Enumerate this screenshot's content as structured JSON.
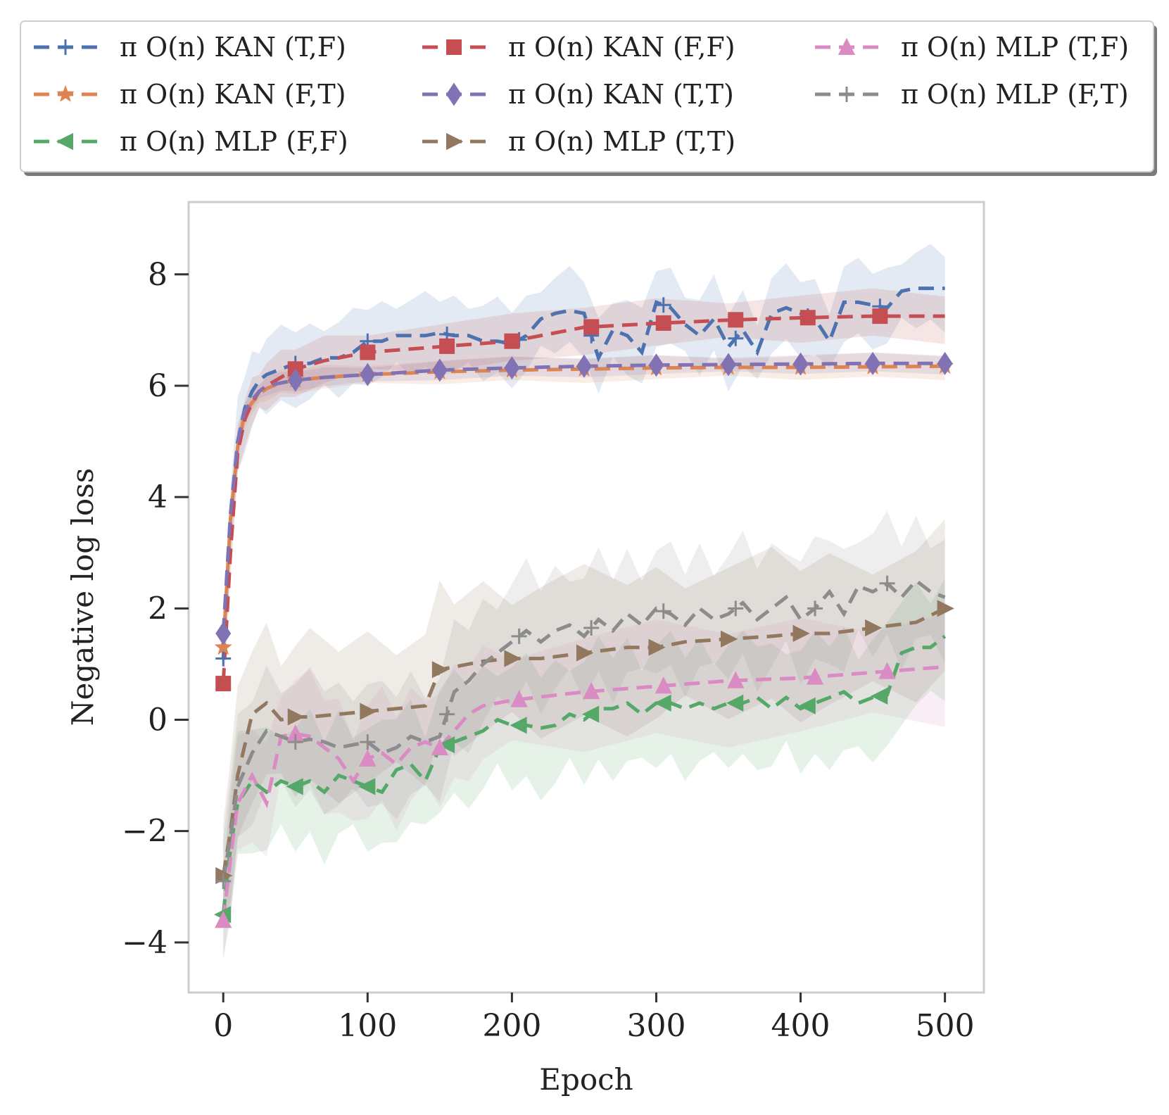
{
  "chart_data": {
    "type": "line",
    "title": "",
    "xlabel": "Epoch",
    "ylabel": "Negative log loss",
    "xlim": [
      -24,
      527
    ],
    "ylim": [
      -4.9,
      9.3
    ],
    "xticks": [
      0,
      100,
      200,
      300,
      400,
      500
    ],
    "yticks": [
      -4,
      -2,
      0,
      2,
      4,
      6,
      8
    ],
    "xtick_labels": [
      "0",
      "100",
      "200",
      "300",
      "400",
      "500"
    ],
    "ytick_labels": [
      "−4",
      "−2",
      "0",
      "2",
      "4",
      "6",
      "8"
    ],
    "grid": false,
    "legend_position": "top",
    "series": [
      {
        "name": "π O(n) KAN (T,F)",
        "color": "#4c72b0",
        "marker": "plus",
        "x": [
          0,
          5,
          10,
          15,
          20,
          25,
          30,
          40,
          50,
          60,
          70,
          80,
          90,
          100,
          110,
          120,
          130,
          140,
          150,
          160,
          170,
          180,
          190,
          200,
          210,
          220,
          230,
          240,
          250,
          260,
          270,
          280,
          290,
          300,
          310,
          320,
          330,
          340,
          350,
          360,
          370,
          380,
          390,
          400,
          410,
          420,
          430,
          440,
          450,
          460,
          470,
          480,
          490,
          500
        ],
        "y": [
          1.1,
          3.5,
          5.0,
          5.6,
          5.9,
          6.1,
          6.2,
          6.3,
          6.4,
          6.4,
          6.5,
          6.5,
          6.6,
          6.8,
          6.8,
          6.9,
          6.9,
          6.9,
          6.95,
          6.9,
          6.9,
          6.8,
          6.8,
          6.75,
          6.9,
          7.2,
          7.3,
          7.35,
          7.3,
          6.5,
          7.0,
          6.9,
          6.6,
          7.5,
          7.4,
          7.1,
          6.9,
          7.2,
          6.7,
          7.0,
          6.6,
          7.3,
          7.4,
          7.3,
          7.2,
          6.8,
          7.5,
          7.5,
          7.45,
          7.4,
          7.7,
          7.75,
          7.75,
          7.75
        ],
        "band": 0.8,
        "marker_x": [
          0,
          50,
          100,
          155,
          205,
          255,
          305,
          355,
          405,
          455
        ]
      },
      {
        "name": "π O(n) KAN (F,T)",
        "color": "#dd8452",
        "marker": "star",
        "x": [
          0,
          5,
          10,
          15,
          20,
          25,
          30,
          40,
          50,
          70,
          100,
          150,
          200,
          250,
          300,
          350,
          400,
          450,
          500
        ],
        "y": [
          1.3,
          3.6,
          4.9,
          5.5,
          5.7,
          5.85,
          5.95,
          6.05,
          6.1,
          6.15,
          6.2,
          6.25,
          6.28,
          6.3,
          6.32,
          6.33,
          6.33,
          6.34,
          6.35
        ],
        "band": 0.25,
        "marker_x": [
          0,
          50,
          100,
          150,
          200,
          250,
          300,
          350,
          400,
          450,
          500
        ]
      },
      {
        "name": "π O(n) MLP (F,F)",
        "color": "#55a868",
        "marker": "triangle-left",
        "x": [
          0,
          5,
          10,
          20,
          30,
          40,
          50,
          60,
          70,
          80,
          90,
          100,
          110,
          120,
          130,
          140,
          150,
          160,
          170,
          180,
          190,
          200,
          210,
          220,
          230,
          240,
          250,
          260,
          270,
          280,
          290,
          300,
          310,
          320,
          330,
          340,
          350,
          360,
          370,
          380,
          390,
          400,
          410,
          420,
          430,
          440,
          450,
          460,
          470,
          480,
          490,
          500
        ],
        "y": [
          -3.5,
          -2.3,
          -1.5,
          -1.1,
          -1.3,
          -1.1,
          -1.2,
          -1.1,
          -1.3,
          -1.0,
          -1.1,
          -1.2,
          -1.3,
          -0.9,
          -0.8,
          -1.1,
          -0.5,
          -0.4,
          -0.3,
          -0.2,
          0.0,
          -0.1,
          -0.1,
          -0.15,
          -0.1,
          0.1,
          0.0,
          0.2,
          0.2,
          0.3,
          0.1,
          0.3,
          0.3,
          0.2,
          0.3,
          0.2,
          0.3,
          0.3,
          0.4,
          0.2,
          0.4,
          0.2,
          0.3,
          0.4,
          0.5,
          0.3,
          0.4,
          0.45,
          1.2,
          1.3,
          1.3,
          1.5
        ],
        "band": 1.3,
        "marker_x": [
          0,
          50,
          100,
          155,
          205,
          255,
          305,
          355,
          405,
          455
        ]
      },
      {
        "name": "π O(n) KAN (F,F)",
        "color": "#c44e52",
        "marker": "square",
        "x": [
          0,
          5,
          10,
          15,
          20,
          25,
          30,
          40,
          50,
          70,
          100,
          150,
          200,
          250,
          300,
          350,
          400,
          450,
          500
        ],
        "y": [
          0.65,
          3.0,
          4.8,
          5.4,
          5.7,
          5.9,
          6.0,
          6.15,
          6.3,
          6.45,
          6.6,
          6.7,
          6.8,
          7.05,
          7.12,
          7.18,
          7.22,
          7.25,
          7.25
        ],
        "band": 0.5,
        "marker_x": [
          0,
          50,
          100,
          155,
          200,
          255,
          305,
          355,
          405,
          455
        ]
      },
      {
        "name": "π O(n) KAN (T,T)",
        "color": "#8172b3",
        "marker": "diamond",
        "x": [
          0,
          5,
          10,
          15,
          20,
          25,
          30,
          40,
          50,
          70,
          100,
          150,
          200,
          250,
          300,
          350,
          400,
          450,
          500
        ],
        "y": [
          1.55,
          3.7,
          5.0,
          5.55,
          5.75,
          5.9,
          6.0,
          6.05,
          6.1,
          6.15,
          6.2,
          6.28,
          6.32,
          6.35,
          6.37,
          6.38,
          6.39,
          6.4,
          6.4
        ],
        "band": 0.2,
        "marker_x": [
          0,
          50,
          100,
          150,
          200,
          250,
          300,
          350,
          400,
          450,
          500
        ]
      },
      {
        "name": "π O(n) MLP (T,T)",
        "color": "#937860",
        "marker": "triangle-right",
        "x": [
          0,
          5,
          10,
          20,
          30,
          40,
          50,
          60,
          80,
          100,
          120,
          140,
          150,
          160,
          180,
          200,
          220,
          250,
          280,
          300,
          320,
          350,
          380,
          400,
          420,
          450,
          480,
          500
        ],
        "y": [
          -2.8,
          -2.0,
          -1.0,
          0.1,
          0.3,
          0.0,
          0.05,
          0.05,
          0.1,
          0.15,
          0.2,
          0.25,
          0.9,
          0.95,
          1.05,
          1.1,
          1.1,
          1.2,
          1.3,
          1.3,
          1.4,
          1.45,
          1.5,
          1.55,
          1.55,
          1.65,
          1.75,
          2.0
        ],
        "band": 1.6,
        "marker_x": [
          0,
          50,
          100,
          150,
          200,
          250,
          300,
          350,
          400,
          450,
          500
        ]
      },
      {
        "name": "π O(n) MLP (T,F)",
        "color": "#da8bc3",
        "marker": "triangle-up",
        "x": [
          0,
          5,
          10,
          20,
          30,
          40,
          50,
          60,
          70,
          80,
          90,
          100,
          110,
          120,
          130,
          140,
          150,
          160,
          170,
          180,
          200,
          250,
          300,
          350,
          400,
          450,
          500
        ],
        "y": [
          -3.6,
          -2.5,
          -1.5,
          -1.0,
          -1.5,
          -0.3,
          -0.25,
          -0.3,
          -0.5,
          -0.7,
          -1.1,
          -0.7,
          -0.6,
          -0.8,
          -0.5,
          -0.4,
          -0.5,
          -0.2,
          0.1,
          0.25,
          0.35,
          0.5,
          0.6,
          0.7,
          0.75,
          0.85,
          0.95
        ],
        "band": 1.2,
        "marker_x": [
          0,
          50,
          100,
          150,
          205,
          255,
          305,
          355,
          410,
          460
        ]
      },
      {
        "name": "π O(n) MLP (F,T)",
        "color": "#8c8c8c",
        "marker": "plus",
        "x": [
          0,
          5,
          10,
          20,
          30,
          40,
          50,
          60,
          70,
          80,
          90,
          100,
          110,
          120,
          130,
          140,
          150,
          160,
          170,
          180,
          190,
          200,
          210,
          220,
          230,
          240,
          250,
          260,
          270,
          280,
          290,
          300,
          310,
          320,
          330,
          340,
          350,
          360,
          370,
          380,
          390,
          400,
          410,
          420,
          430,
          440,
          450,
          460,
          470,
          480,
          490,
          500
        ],
        "y": [
          -2.9,
          -2.1,
          -1.2,
          -0.6,
          -0.2,
          -0.3,
          -0.4,
          -0.35,
          -0.4,
          -0.5,
          -0.45,
          -0.4,
          -0.6,
          -0.5,
          -0.3,
          -0.4,
          -0.3,
          0.5,
          0.7,
          1.0,
          1.2,
          1.4,
          1.6,
          1.4,
          1.6,
          1.7,
          1.5,
          1.8,
          1.6,
          1.9,
          1.7,
          2.0,
          1.9,
          1.7,
          2.0,
          1.8,
          1.9,
          2.1,
          1.8,
          2.0,
          2.2,
          1.8,
          2.0,
          2.3,
          1.9,
          2.4,
          2.3,
          2.45,
          2.2,
          2.5,
          2.3,
          2.2
        ],
        "band": 1.3,
        "marker_x": [
          0,
          50,
          100,
          155,
          205,
          255,
          305,
          355,
          410,
          460
        ]
      }
    ]
  }
}
